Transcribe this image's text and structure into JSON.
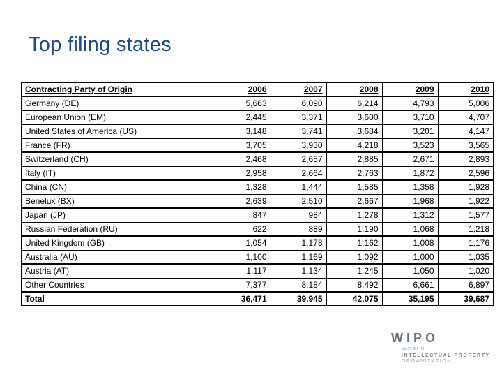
{
  "slide": {
    "title": "Top filing states"
  },
  "colors": {
    "title": "#1c4b82",
    "table_border": "#000000",
    "background": "#ffffff",
    "logo_wipo": "#66727f",
    "logo_subtext": "#9aa4ae",
    "logo_subtext_bold": "#7b8794"
  },
  "table": {
    "header": {
      "label": "Contracting Party of Origin",
      "years": [
        "2006",
        "2007",
        "2008",
        "2009",
        "2010"
      ]
    },
    "rows": [
      {
        "label": "Germany (DE)",
        "values": [
          "5,663",
          "6,090",
          "6,214",
          "4,793",
          "5,006"
        ]
      },
      {
        "label": "European Union (EM)",
        "values": [
          "2,445",
          "3,371",
          "3,600",
          "3,710",
          "4,707"
        ]
      },
      {
        "label": "United States of America (US)",
        "values": [
          "3,148",
          "3,741",
          "3,684",
          "3,201",
          "4,147"
        ]
      },
      {
        "label": "France (FR)",
        "values": [
          "3,705",
          "3,930",
          "4,218",
          "3,523",
          "3,565"
        ]
      },
      {
        "label": "Switzerland (CH)",
        "values": [
          "2,468",
          "2,657",
          "2,885",
          "2,671",
          "2,893"
        ]
      },
      {
        "label": "Italy (IT)",
        "values": [
          "2,958",
          "2,664",
          "2,763",
          "1,872",
          "2,596"
        ]
      },
      {
        "label": "China (CN)",
        "values": [
          "1,328",
          "1,444",
          "1,585",
          "1,358",
          "1,928"
        ]
      },
      {
        "label": "Benelux (BX)",
        "values": [
          "2,639",
          "2,510",
          "2,667",
          "1,968",
          "1,922"
        ]
      },
      {
        "label": "Japan (JP)",
        "values": [
          "847",
          "984",
          "1,278",
          "1,312",
          "1,577"
        ]
      },
      {
        "label": "Russian Federation (RU)",
        "values": [
          "622",
          "889",
          "1,190",
          "1,068",
          "1,218"
        ]
      },
      {
        "label": "United Kingdom (GB)",
        "values": [
          "1,054",
          "1,178",
          "1,162",
          "1,008",
          "1,176"
        ]
      },
      {
        "label": "Australia (AU)",
        "values": [
          "1,100",
          "1,169",
          "1,092",
          "1,000",
          "1,035"
        ]
      },
      {
        "label": "Austria (AT)",
        "values": [
          "1,117",
          "1,134",
          "1,245",
          "1,050",
          "1,020"
        ]
      },
      {
        "label": "Other Countries",
        "values": [
          "7,377",
          "8,184",
          "8,492",
          "6,661",
          "6,897"
        ]
      }
    ],
    "total": {
      "label": "Total",
      "values": [
        "36,471",
        "39,945",
        "42,075",
        "35,195",
        "39,687"
      ]
    }
  },
  "logo": {
    "name": "WIPO",
    "line1": "WORLD",
    "line2": "INTELLECTUAL PROPERTY",
    "line3": "ORGANIZATION"
  }
}
